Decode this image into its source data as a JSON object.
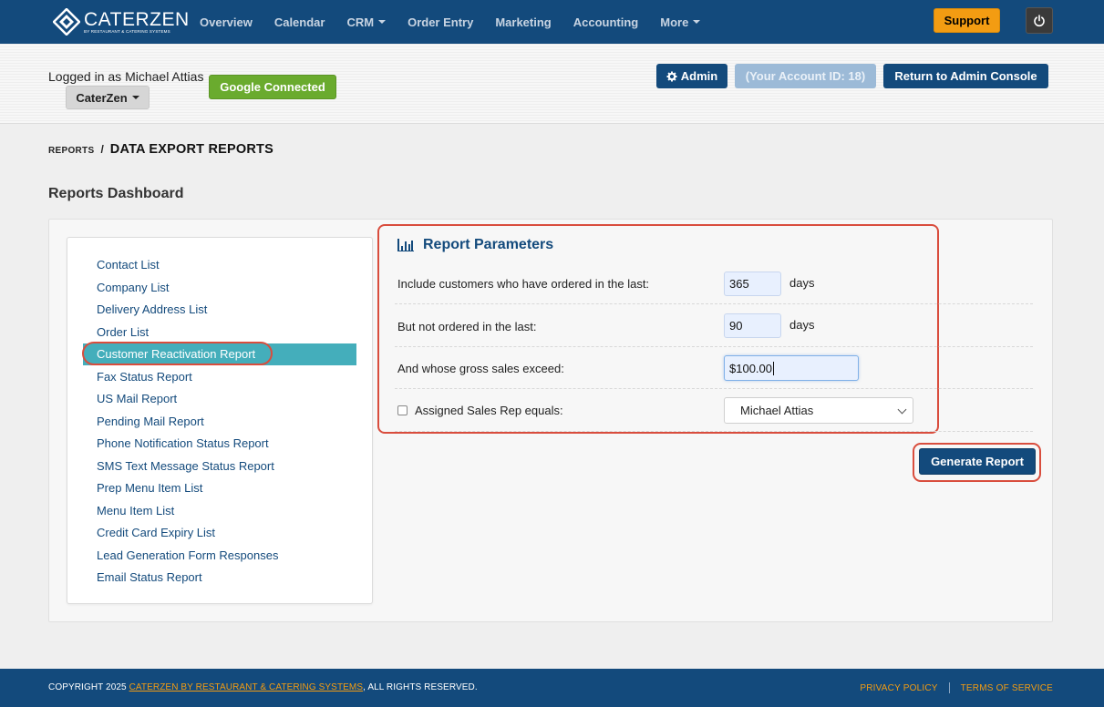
{
  "brand": {
    "name": "CATERZEN",
    "tagline": "BY RESTAURANT & CATERING SYSTEMS"
  },
  "nav": {
    "items": [
      {
        "label": "Overview",
        "dropdown": false
      },
      {
        "label": "Calendar",
        "dropdown": false
      },
      {
        "label": "CRM",
        "dropdown": true
      },
      {
        "label": "Order Entry",
        "dropdown": false
      },
      {
        "label": "Marketing",
        "dropdown": false
      },
      {
        "label": "Accounting",
        "dropdown": false
      },
      {
        "label": "More",
        "dropdown": true
      }
    ],
    "support_label": "Support",
    "power_icon": "power-icon"
  },
  "account": {
    "logged_in_text": "Logged in as Michael Attias",
    "company_label": "CaterZen",
    "google_label": "Google Connected",
    "admin_label": "Admin",
    "account_id_label": "(Your Account ID: 18)",
    "return_label": "Return to Admin Console"
  },
  "breadcrumb": {
    "parent": "REPORTS",
    "separator": "/",
    "current": "DATA EXPORT REPORTS"
  },
  "page_title": "Reports Dashboard",
  "reports": [
    "Contact List",
    "Company List",
    "Delivery Address List",
    "Order List",
    "Customer Reactivation Report",
    "Fax Status Report",
    "US Mail Report",
    "Pending Mail Report",
    "Phone Notification Status Report",
    "SMS Text Message Status Report",
    "Prep Menu Item List",
    "Menu Item List",
    "Credit Card Expiry List",
    "Lead Generation Form Responses",
    "Email Status Report"
  ],
  "active_report_index": 4,
  "params": {
    "title": "Report Parameters",
    "ordered_in_last_label": "Include customers who have ordered in the last:",
    "ordered_in_last_value": "365",
    "not_ordered_label": "But not ordered in the last:",
    "not_ordered_value": "90",
    "days_unit": "days",
    "gross_sales_label": "And whose gross sales exceed:",
    "gross_sales_value": "$100.00",
    "sales_rep_label": "Assigned Sales Rep equals:",
    "sales_rep_checked": false,
    "sales_rep_value": "Michael Attias"
  },
  "generate_label": "Generate Report",
  "footer": {
    "copyright_prefix": "COPYRIGHT 2025 ",
    "copyright_link": "CATERZEN BY RESTAURANT & CATERING SYSTEMS",
    "copyright_suffix": ", ALL RIGHTS RESERVED.",
    "privacy": "PRIVACY POLICY",
    "terms": "TERMS OF SERVICE"
  },
  "colors": {
    "primary": "#134a7c",
    "accent": "#f39c12",
    "active": "#44aebb",
    "success": "#6aab2e",
    "highlight": "#d94d3d"
  }
}
